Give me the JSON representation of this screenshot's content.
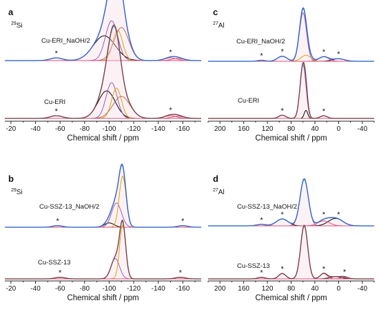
{
  "figure": {
    "type": "multi-panel NMR spectra"
  },
  "chart_data": [
    {
      "panel": "a",
      "type": "line",
      "nucleus": "29Si",
      "nucleus_mass": "29",
      "nucleus_symbol": "Si",
      "xlabel": "Chemical shift / ppm",
      "xlim": [
        -15,
        -175
      ],
      "xticks": [
        -20,
        -40,
        -60,
        -80,
        -100,
        -120,
        -140,
        -160
      ],
      "colors": {
        "exp": "#3a63c8",
        "fit": "#2f9ee0",
        "c1": "#000000",
        "c2": "#9b59b6",
        "c3": "#e0a000",
        "c4": "#b36a5e",
        "ssb": "#e0507a"
      },
      "spectra": [
        {
          "label": "Cu-ERI_NaOH/2",
          "star_positions": [
            -57,
            -150
          ],
          "peaks": [
            {
              "center": -96,
              "height": 0.45,
              "width": 9,
              "color": "#000000"
            },
            {
              "center": -102,
              "height": 0.72,
              "width": 5,
              "color": "#9b59b6"
            },
            {
              "center": -107,
              "height": 0.55,
              "width": 4,
              "color": "#e0a000"
            },
            {
              "center": -110,
              "height": 0.6,
              "width": 6,
              "color": "#b36a5e"
            }
          ],
          "ssb_peaks": [
            {
              "center": -57,
              "height": 0.05,
              "width": 5
            },
            {
              "center": -150,
              "height": 0.05,
              "width": 5
            },
            {
              "center": -156,
              "height": 0.04,
              "width": 5
            }
          ]
        },
        {
          "label": "Cu-ERI",
          "star_positions": [
            -57,
            -150
          ],
          "peaks": [
            {
              "center": -98,
              "height": 0.5,
              "width": 7,
              "color": "#000000"
            },
            {
              "center": -102,
              "height": 0.65,
              "width": 4.5,
              "color": "#9b59b6"
            },
            {
              "center": -106,
              "height": 0.55,
              "width": 4,
              "color": "#e0a000"
            },
            {
              "center": -110,
              "height": 0.4,
              "width": 7,
              "color": "#b36a5e"
            }
          ],
          "ssb_peaks": [
            {
              "center": -57,
              "height": 0.05,
              "width": 5
            },
            {
              "center": -150,
              "height": 0.05,
              "width": 5
            },
            {
              "center": -156,
              "height": 0.04,
              "width": 5
            }
          ]
        }
      ]
    },
    {
      "panel": "b",
      "type": "line",
      "nucleus": "29Si",
      "nucleus_mass": "29",
      "nucleus_symbol": "Si",
      "xlabel": "Chemical shift / ppm",
      "xlim": [
        -15,
        -175
      ],
      "xticks": [
        -20,
        -40,
        -60,
        -80,
        -100,
        -120,
        -140,
        -160
      ],
      "colors": {
        "exp": "#3a63c8",
        "fit": "#2f9ee0",
        "c1": "#000000",
        "c2": "#9b59b6",
        "c3": "#e0a000",
        "c4": "#b36a5e",
        "ssb": "#e0507a"
      },
      "spectra": [
        {
          "label": "Cu-SSZ-13_NaOH/2",
          "star_positions": [
            -58,
            -160
          ],
          "peaks": [
            {
              "center": -100,
              "height": 0.08,
              "width": 4,
              "color": "#000000"
            },
            {
              "center": -106,
              "height": 0.45,
              "width": 4,
              "color": "#9b59b6"
            },
            {
              "center": -111,
              "height": 0.95,
              "width": 2.8,
              "color": "#e0a000"
            }
          ],
          "ssb_peaks": [
            {
              "center": -58,
              "height": 0.03,
              "width": 4
            },
            {
              "center": -160,
              "height": 0.03,
              "width": 4
            }
          ]
        },
        {
          "label": "Cu-SSZ-13",
          "star_positions": [
            -60,
            -158
          ],
          "peaks": [
            {
              "center": -105,
              "height": 0.38,
              "width": 3.5,
              "color": "#9b59b6"
            },
            {
              "center": -111,
              "height": 1.0,
              "width": 2.5,
              "color": "#e0a000"
            }
          ],
          "ssb_peaks": [
            {
              "center": -60,
              "height": 0.03,
              "width": 4
            },
            {
              "center": -158,
              "height": 0.03,
              "width": 4
            }
          ]
        }
      ]
    },
    {
      "panel": "c",
      "type": "line",
      "nucleus": "27Al",
      "nucleus_mass": "27",
      "nucleus_symbol": "Al",
      "xlabel": "Chemical shift / ppm",
      "xlim": [
        220,
        -60
      ],
      "xticks": [
        200,
        160,
        120,
        80,
        40,
        0,
        -40
      ],
      "colors": {
        "exp": "#3a63c8",
        "fit": "#2f9ee0",
        "c1": "#000000",
        "c2": "#9b59b6",
        "c3": "#e0a000",
        "c4": "#b36a5e",
        "ssb": "#e0507a"
      },
      "spectra": [
        {
          "label": "Cu-ERI_NaOH/2",
          "star_positions": [
            130,
            95,
            25,
            0
          ],
          "peaks": [
            {
              "center": 60,
              "height": 0.95,
              "width": 6,
              "color": "#9b59b6"
            },
            {
              "center": 55,
              "height": 0.12,
              "width": 8,
              "color": "#e0a000"
            },
            {
              "center": 0,
              "height": 0.05,
              "width": 10,
              "color": "#000000"
            }
          ],
          "ssb_peaks": [
            {
              "center": 95,
              "height": 0.1,
              "width": 8
            },
            {
              "center": 25,
              "height": 0.09,
              "width": 8
            },
            {
              "center": 130,
              "height": 0.02,
              "width": 6
            }
          ]
        },
        {
          "label": "Cu-ERI",
          "star_positions": [
            95,
            25
          ],
          "peaks": [
            {
              "center": 60,
              "height": 1.0,
              "width": 5,
              "color": "#9b59b6"
            },
            {
              "center": 55,
              "height": 0.15,
              "width": 3,
              "color": "#000000"
            }
          ],
          "ssb_peaks": [
            {
              "center": 95,
              "height": 0.06,
              "width": 6
            },
            {
              "center": 25,
              "height": 0.05,
              "width": 6
            }
          ]
        }
      ]
    },
    {
      "panel": "d",
      "type": "line",
      "nucleus": "27Al",
      "nucleus_mass": "27",
      "nucleus_symbol": "Al",
      "xlabel": "Chemical shift / ppm",
      "xlim": [
        220,
        -60
      ],
      "xticks": [
        200,
        160,
        120,
        80,
        40,
        0,
        -40
      ],
      "colors": {
        "exp": "#3a63c8",
        "fit": "#2f9ee0",
        "c1": "#000000",
        "c2": "#9b59b6",
        "c3": "#e0a000",
        "c4": "#b36a5e",
        "ssb": "#e0507a"
      },
      "spectra": [
        {
          "label": "Cu-SSZ-13_NaOH/2",
          "star_positions": [
            130,
            95,
            25,
            0
          ],
          "peaks": [
            {
              "center": 58,
              "height": 0.95,
              "width": 7,
              "color": "#9b59b6"
            },
            {
              "center": 95,
              "height": 0.14,
              "width": 10,
              "color": "#000000"
            },
            {
              "center": 5,
              "height": 0.15,
              "width": 12,
              "color": "#000000"
            }
          ],
          "ssb_peaks": [
            {
              "center": 25,
              "height": 0.1,
              "width": 10
            },
            {
              "center": 130,
              "height": 0.03,
              "width": 8
            }
          ]
        },
        {
          "label": "Cu-SSZ-13",
          "star_positions": [
            130,
            95,
            25,
            -10
          ],
          "peaks": [
            {
              "center": 58,
              "height": 1.0,
              "width": 6,
              "color": "#9b59b6"
            },
            {
              "center": 5,
              "height": 0.04,
              "width": 10,
              "color": "#000000"
            }
          ],
          "ssb_peaks": [
            {
              "center": 95,
              "height": 0.1,
              "width": 6
            },
            {
              "center": 25,
              "height": 0.1,
              "width": 6
            },
            {
              "center": 130,
              "height": 0.03,
              "width": 6
            },
            {
              "center": -10,
              "height": 0.03,
              "width": 6
            }
          ]
        }
      ]
    }
  ]
}
